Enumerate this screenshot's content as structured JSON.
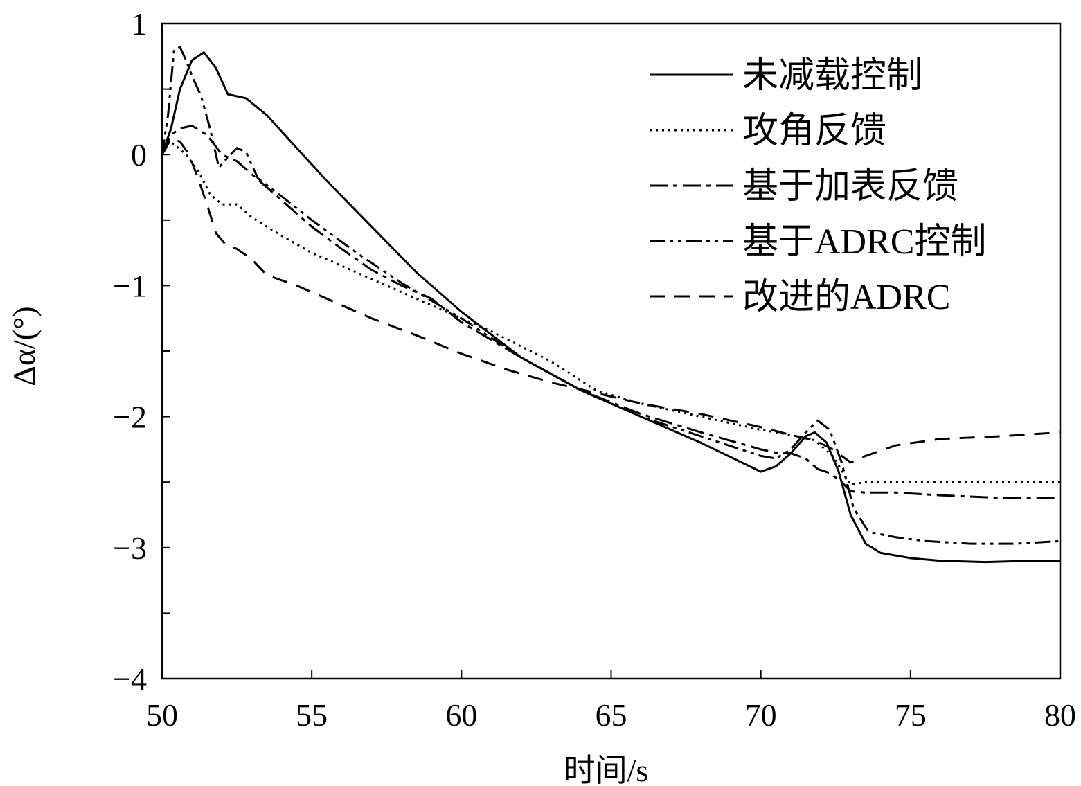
{
  "chart_data": {
    "type": "line",
    "title": "",
    "xlabel": "时间/s",
    "ylabel": "Δα/(°)",
    "xlim": [
      50,
      80
    ],
    "ylim": [
      -4,
      1
    ],
    "xticks": [
      50,
      55,
      60,
      65,
      70,
      75,
      80
    ],
    "yticks": [
      -4,
      -3,
      -2,
      -1,
      0,
      1
    ],
    "xtick_labels": [
      "50",
      "55",
      "60",
      "65",
      "70",
      "75",
      "80"
    ],
    "ytick_labels": [
      "−4",
      "",
      "−3",
      "",
      "−2",
      "",
      "−1",
      "",
      "0",
      "",
      "1"
    ],
    "ytick_positions": [
      -4,
      -3.5,
      -3,
      -2.5,
      -2,
      -1.5,
      -1,
      -0.5,
      0,
      0.5,
      1
    ],
    "grid": false,
    "legend_position": "top-right",
    "series": [
      {
        "name": "未减载控制",
        "style": "solid",
        "x": [
          50.0,
          50.3,
          50.6,
          51.0,
          51.4,
          51.8,
          52.2,
          52.8,
          53.5,
          54.5,
          55.5,
          57.0,
          58.5,
          60.0,
          62.0,
          64.0,
          66.0,
          68.0,
          70.0,
          70.5,
          71.0,
          71.5,
          71.8,
          72.2,
          72.6,
          73.0,
          73.5,
          74.0,
          75.0,
          76.0,
          77.5,
          79.0,
          80.0
        ],
        "y": [
          0.0,
          0.2,
          0.5,
          0.72,
          0.78,
          0.66,
          0.46,
          0.43,
          0.3,
          0.05,
          -0.2,
          -0.55,
          -0.9,
          -1.2,
          -1.55,
          -1.8,
          -2.0,
          -2.2,
          -2.42,
          -2.38,
          -2.28,
          -2.15,
          -2.12,
          -2.2,
          -2.42,
          -2.75,
          -2.97,
          -3.04,
          -3.08,
          -3.1,
          -3.11,
          -3.1,
          -3.1
        ]
      },
      {
        "name": "攻角反馈",
        "style": "dotted",
        "x": [
          50.0,
          50.2,
          50.4,
          50.8,
          51.2,
          51.6,
          52.0,
          52.5,
          53.0,
          54.0,
          55.0,
          57.0,
          59.0,
          61.0,
          63.0,
          64.5,
          66.0,
          68.0,
          70.0,
          71.0,
          71.8,
          72.4,
          73.0,
          73.5,
          74.5,
          76.0,
          78.0,
          80.0
        ],
        "y": [
          0.0,
          0.1,
          0.08,
          0.0,
          -0.12,
          -0.3,
          -0.38,
          -0.38,
          -0.48,
          -0.62,
          -0.75,
          -0.95,
          -1.15,
          -1.35,
          -1.58,
          -1.8,
          -1.9,
          -2.0,
          -2.1,
          -2.14,
          -2.18,
          -2.3,
          -2.52,
          -2.5,
          -2.5,
          -2.5,
          -2.5,
          -2.5
        ]
      },
      {
        "name": "基于加表反馈",
        "style": "dashdot",
        "x": [
          50.0,
          50.3,
          50.6,
          51.0,
          51.5,
          52.0,
          52.5,
          53.0,
          54.0,
          55.0,
          56.0,
          57.0,
          58.0,
          59.0,
          60.0,
          62.0,
          64.0,
          66.0,
          68.0,
          70.0,
          70.6,
          71.0,
          71.5,
          71.9,
          72.3,
          72.7,
          73.0,
          73.5,
          74.5,
          76.0,
          78.0,
          80.0
        ],
        "y": [
          0.0,
          0.15,
          0.2,
          0.22,
          0.15,
          0.0,
          -0.05,
          -0.15,
          -0.35,
          -0.55,
          -0.72,
          -0.88,
          -1.0,
          -1.1,
          -1.28,
          -1.55,
          -1.8,
          -1.98,
          -2.12,
          -2.25,
          -2.28,
          -2.28,
          -2.32,
          -2.4,
          -2.43,
          -2.5,
          -2.57,
          -2.58,
          -2.58,
          -2.6,
          -2.62,
          -2.62
        ]
      },
      {
        "name": "基于ADRC控制",
        "style": "dashdotdot",
        "x": [
          50.0,
          50.2,
          50.4,
          50.6,
          50.8,
          51.0,
          51.3,
          51.6,
          51.9,
          52.2,
          52.5,
          52.8,
          53.2,
          54.0,
          55.0,
          56.5,
          58.0,
          60.0,
          62.0,
          64.0,
          66.0,
          68.0,
          70.0,
          70.5,
          71.0,
          71.5,
          71.9,
          72.3,
          72.7,
          73.1,
          73.6,
          74.5,
          75.5,
          77.0,
          78.5,
          80.0
        ],
        "y": [
          0.0,
          0.3,
          0.8,
          0.82,
          0.72,
          0.6,
          0.45,
          0.2,
          -0.1,
          -0.02,
          0.05,
          0.02,
          -0.18,
          -0.32,
          -0.5,
          -0.75,
          -0.98,
          -1.25,
          -1.55,
          -1.8,
          -2.0,
          -2.15,
          -2.3,
          -2.32,
          -2.25,
          -2.12,
          -2.03,
          -2.1,
          -2.35,
          -2.7,
          -2.88,
          -2.92,
          -2.95,
          -2.97,
          -2.97,
          -2.95
        ]
      },
      {
        "name": "改进的ADRC",
        "style": "dashed",
        "x": [
          50.0,
          50.3,
          50.6,
          50.9,
          51.2,
          51.5,
          51.8,
          52.1,
          52.5,
          53.0,
          53.5,
          54.5,
          55.5,
          57.0,
          58.5,
          60.0,
          61.5,
          63.0,
          64.5,
          66.0,
          68.0,
          70.0,
          71.0,
          71.8,
          72.4,
          73.0,
          73.5,
          74.5,
          76.0,
          78.0,
          80.0
        ],
        "y": [
          0.0,
          0.12,
          0.1,
          0.0,
          -0.18,
          -0.38,
          -0.6,
          -0.68,
          -0.72,
          -0.8,
          -0.92,
          -1.0,
          -1.1,
          -1.25,
          -1.38,
          -1.52,
          -1.64,
          -1.74,
          -1.82,
          -1.9,
          -1.98,
          -2.08,
          -2.14,
          -2.18,
          -2.25,
          -2.35,
          -2.3,
          -2.22,
          -2.17,
          -2.15,
          -2.12
        ]
      }
    ]
  }
}
